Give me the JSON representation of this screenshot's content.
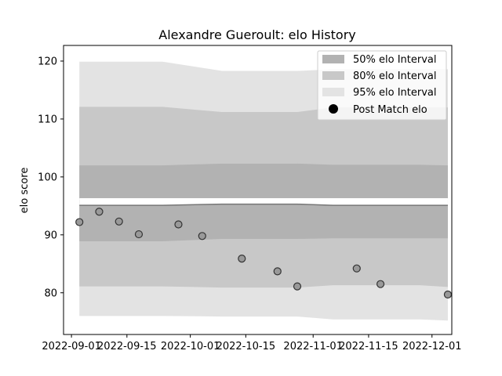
{
  "chart_data": {
    "type": "line",
    "title": "Alexandre Gueroult: elo History",
    "xlabel": "",
    "ylabel": "elo score",
    "x_tick_labels": [
      "2022-09-01",
      "2022-09-15",
      "2022-10-01",
      "2022-10-15",
      "2022-11-01",
      "2022-11-15",
      "2022-12-01"
    ],
    "y_ticks": [
      80,
      90,
      100,
      110,
      120
    ],
    "ylim": [
      72.8,
      122.7
    ],
    "xlim": [
      "2022-08-30",
      "2022-12-06"
    ],
    "grid": false,
    "legend_position": "top-right",
    "legend": [
      "50% elo Interval",
      "80% elo Interval",
      "95% elo Interval",
      "Post Match elo"
    ],
    "band_dates": [
      "2022-09-03",
      "2022-09-24",
      "2022-10-09",
      "2022-10-28",
      "2022-11-06",
      "2022-11-28",
      "2022-12-05"
    ],
    "bands": {
      "p95": {
        "upper": [
          119.9,
          119.9,
          118.3,
          118.3,
          118.6,
          118.6,
          118.6
        ],
        "lower": [
          76.0,
          76.0,
          75.9,
          75.9,
          75.4,
          75.4,
          75.2
        ]
      },
      "p80": {
        "upper": [
          112.1,
          112.1,
          111.2,
          111.2,
          112.0,
          112.0,
          112.0
        ],
        "lower": [
          81.1,
          81.1,
          80.9,
          80.9,
          81.3,
          81.3,
          81.0
        ]
      },
      "p50": {
        "upper": [
          102.0,
          102.0,
          102.3,
          102.3,
          102.1,
          102.1,
          102.0
        ],
        "lower": [
          88.9,
          88.9,
          89.3,
          89.3,
          89.4,
          89.4,
          89.4
        ]
      },
      "center_upper": [
        96.2,
        96.2,
        96.2,
        96.2,
        96.2,
        96.2,
        96.2
      ],
      "center_lower": [
        95.1,
        95.1,
        95.3,
        95.3,
        95.1,
        95.1,
        95.1
      ]
    },
    "points": {
      "name": "Post Match elo",
      "dates": [
        "2022-09-03",
        "2022-09-08",
        "2022-09-13",
        "2022-09-18",
        "2022-09-28",
        "2022-10-04",
        "2022-10-14",
        "2022-10-23",
        "2022-10-28",
        "2022-11-12",
        "2022-11-18",
        "2022-12-05"
      ],
      "values": [
        92.2,
        94.0,
        92.3,
        90.1,
        91.8,
        89.8,
        85.9,
        83.7,
        81.1,
        84.2,
        81.5,
        79.7
      ]
    },
    "colors": {
      "p50": "#b2b2b2",
      "p80": "#c8c8c8",
      "p95": "#e3e3e3",
      "line": "#777777",
      "point_fill": "#999999",
      "point_edge": "#333333",
      "legend_marker": "#000000"
    }
  }
}
